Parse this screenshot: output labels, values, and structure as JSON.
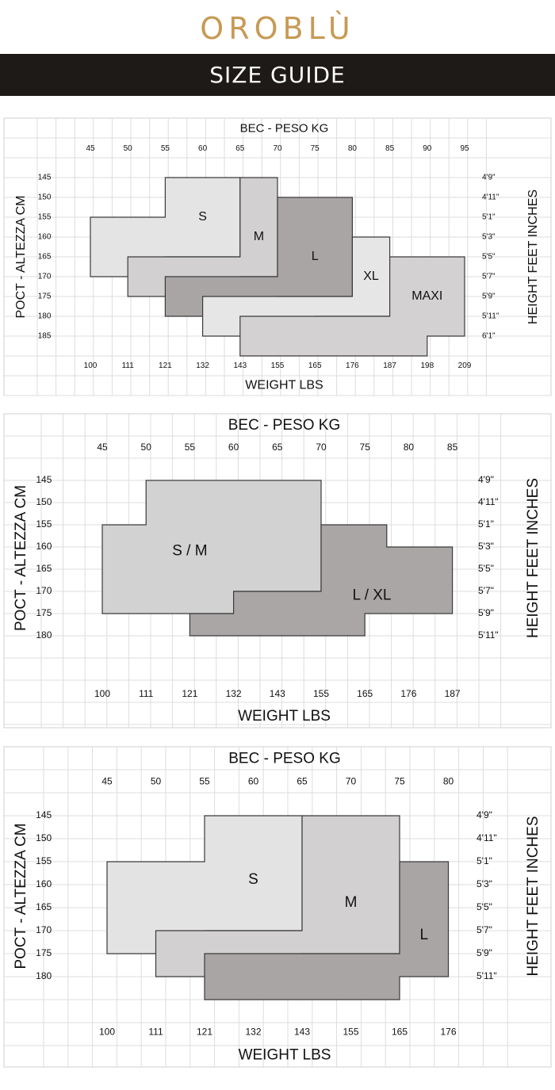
{
  "brand": {
    "logo": "OROBLÙ",
    "banner": "SIZE GUIDE"
  },
  "chart_data": [
    {
      "type": "table",
      "title": "BEC - PESO KG",
      "xlabel": "WEIGHT LBS",
      "ylabel_left": "POCT - ALTEZZA CM",
      "ylabel_right": "HEIGHT FEET INCHES",
      "x_kg": [
        45,
        50,
        55,
        60,
        65,
        70,
        75,
        80,
        85,
        90,
        95
      ],
      "x_lbs": [
        100,
        111,
        121,
        132,
        143,
        155,
        165,
        176,
        187,
        198,
        209
      ],
      "y_cm": [
        145,
        150,
        155,
        160,
        165,
        170,
        175,
        180,
        185
      ],
      "y_ft": [
        "4'9\"",
        "4'11\"",
        "5'1\"",
        "5'3\"",
        "5'5\"",
        "5'7\"",
        "5'9\"",
        "5'11\"",
        "6'1\""
      ],
      "sizes": [
        {
          "name": "S",
          "color": "#e4e4e4",
          "min_weight_kg_by_height": [
            55,
            55,
            45,
            45,
            45
          ],
          "max_weight_kg_by_height": [
            65,
            65,
            65,
            65,
            55
          ]
        },
        {
          "name": "M",
          "color": "#d2d0d0",
          "min_weight_kg_by_height": [
            65,
            65,
            65,
            65,
            55,
            50
          ],
          "max_weight_kg_by_height": [
            70,
            70,
            70,
            70,
            70,
            65
          ],
          "height_start_cm": 145
        },
        {
          "name": "L",
          "color": "#a9a5a4",
          "min_weight_kg_by_height": [
            70,
            70,
            70,
            70,
            70,
            55,
            55
          ],
          "max_weight_kg_by_height": [
            80,
            80,
            80,
            80,
            80,
            80,
            70
          ],
          "height_start_cm": 150
        },
        {
          "name": "XL",
          "color": "#e6e6e6",
          "min_weight_kg_by_height": [
            80,
            80,
            80,
            80,
            70,
            60,
            60
          ],
          "max_weight_kg_by_height": [
            85,
            85,
            85,
            85,
            85,
            85,
            75
          ],
          "height_start_cm": 160
        },
        {
          "name": "MAXI",
          "color": "#d3d1d1",
          "min_weight_kg_by_height": [
            85,
            85,
            85,
            75,
            65,
            65
          ],
          "max_weight_kg_by_height": [
            95,
            95,
            95,
            95,
            95,
            90
          ],
          "height_start_cm": 165
        }
      ]
    },
    {
      "type": "table",
      "title": "BEC - PESO KG",
      "xlabel": "WEIGHT LBS",
      "ylabel_left": "POCT - ALTEZZA CM",
      "ylabel_right": "HEIGHT FEET INCHES",
      "x_kg": [
        45,
        50,
        55,
        60,
        65,
        70,
        75,
        80,
        85
      ],
      "x_lbs": [
        100,
        111,
        121,
        132,
        143,
        155,
        165,
        176,
        187
      ],
      "y_cm": [
        145,
        150,
        155,
        160,
        165,
        170,
        175,
        180
      ],
      "y_ft": [
        "4'9\"",
        "4'11\"",
        "5'1\"",
        "5'3\"",
        "5'5\"",
        "5'7\"",
        "5'9\"",
        "5'11\""
      ],
      "sizes": [
        {
          "name": "S / M",
          "color": "#d3d2d2",
          "height_range_cm": [
            145,
            175
          ],
          "weight_range_kg": [
            45,
            70
          ]
        },
        {
          "name": "L / XL",
          "color": "#a9a6a5",
          "height_range_cm": [
            150,
            180
          ],
          "weight_range_kg": [
            55,
            85
          ]
        }
      ]
    },
    {
      "type": "table",
      "title": "BEC - PESO KG",
      "xlabel": "WEIGHT LBS",
      "ylabel_left": "POCT - ALTEZZA CM",
      "ylabel_right": "HEIGHT FEET INCHES",
      "x_kg": [
        45,
        50,
        55,
        60,
        65,
        70,
        75,
        80
      ],
      "x_lbs": [
        100,
        111,
        121,
        132,
        143,
        155,
        165,
        176
      ],
      "y_cm": [
        145,
        150,
        155,
        160,
        165,
        170,
        175,
        180
      ],
      "y_ft": [
        "4'9\"",
        "4'11\"",
        "5'1\"",
        "5'3\"",
        "5'5\"",
        "5'7\"",
        "5'9\"",
        "5'11\""
      ],
      "sizes": [
        {
          "name": "S",
          "color": "#e3e3e3",
          "height_range_cm": [
            145,
            170
          ],
          "weight_range_kg": [
            45,
            65
          ]
        },
        {
          "name": "M",
          "color": "#d2d0d0",
          "height_range_cm": [
            145,
            180
          ],
          "weight_range_kg": [
            50,
            70
          ]
        },
        {
          "name": "L",
          "color": "#a9a5a4",
          "height_range_cm": [
            155,
            180
          ],
          "weight_range_kg": [
            55,
            80
          ]
        }
      ]
    }
  ]
}
